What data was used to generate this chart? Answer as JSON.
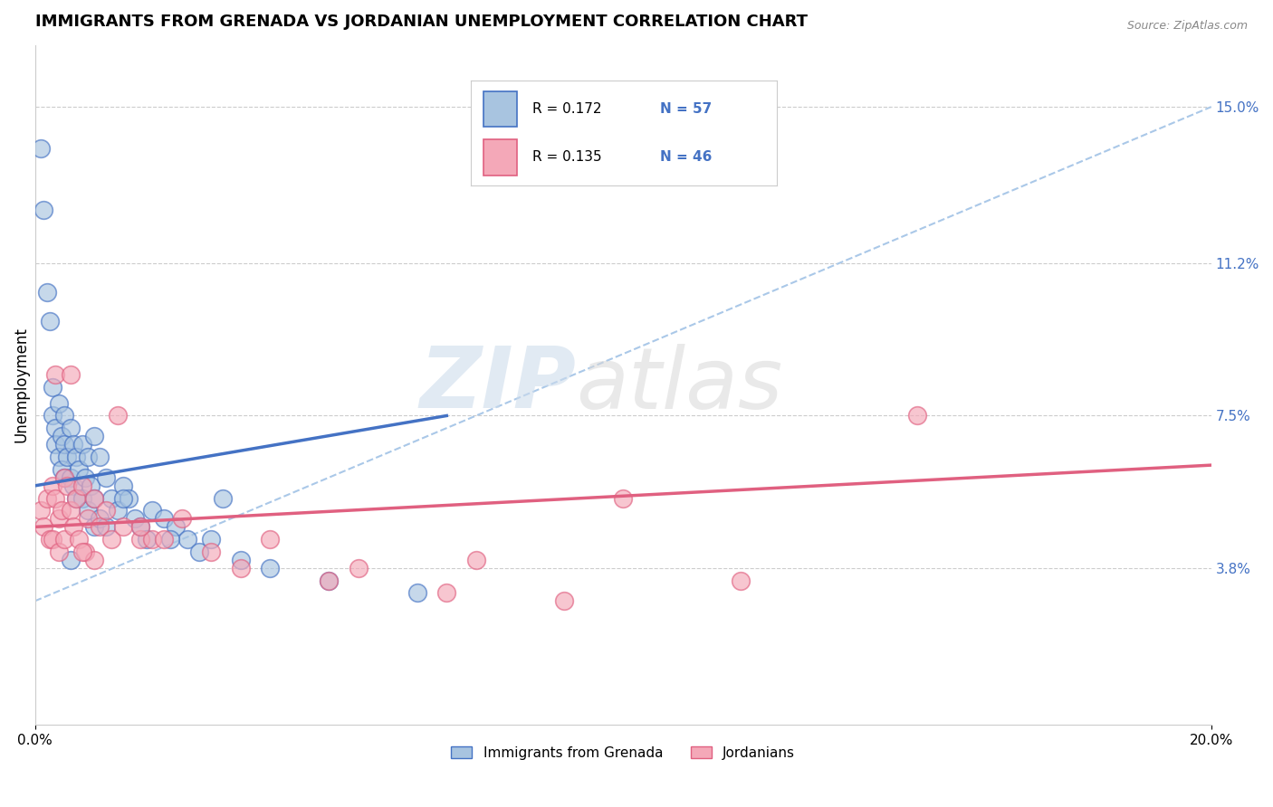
{
  "title": "IMMIGRANTS FROM GRENADA VS JORDANIAN UNEMPLOYMENT CORRELATION CHART",
  "source_text": "Source: ZipAtlas.com",
  "ylabel": "Unemployment",
  "y_ticks_right": [
    3.8,
    7.5,
    11.2,
    15.0
  ],
  "y_ticks_right_labels": [
    "3.8%",
    "7.5%",
    "11.2%",
    "15.0%"
  ],
  "xlim": [
    0.0,
    20.0
  ],
  "ylim": [
    0.0,
    16.5
  ],
  "blue_color": "#a8c4e0",
  "pink_color": "#f4a8b8",
  "trend_blue": "#4472c4",
  "trend_pink": "#e06080",
  "background_color": "#ffffff",
  "blue_scatter_x": [
    0.1,
    0.15,
    0.2,
    0.25,
    0.3,
    0.3,
    0.35,
    0.35,
    0.4,
    0.4,
    0.45,
    0.45,
    0.5,
    0.5,
    0.5,
    0.55,
    0.6,
    0.6,
    0.65,
    0.65,
    0.7,
    0.7,
    0.75,
    0.8,
    0.8,
    0.85,
    0.9,
    0.9,
    0.95,
    1.0,
    1.0,
    1.0,
    1.1,
    1.1,
    1.2,
    1.2,
    1.3,
    1.4,
    1.5,
    1.6,
    1.7,
    1.8,
    1.9,
    2.0,
    2.2,
    2.4,
    2.6,
    2.8,
    3.0,
    3.5,
    4.0,
    5.0,
    6.5,
    3.2,
    2.3,
    1.5,
    0.6
  ],
  "blue_scatter_y": [
    14.0,
    12.5,
    10.5,
    9.8,
    8.2,
    7.5,
    7.2,
    6.8,
    7.8,
    6.5,
    7.0,
    6.2,
    7.5,
    6.8,
    6.0,
    6.5,
    7.2,
    6.0,
    6.8,
    5.8,
    6.5,
    5.5,
    6.2,
    6.8,
    5.5,
    6.0,
    6.5,
    5.2,
    5.8,
    7.0,
    5.5,
    4.8,
    6.5,
    5.0,
    6.0,
    4.8,
    5.5,
    5.2,
    5.8,
    5.5,
    5.0,
    4.8,
    4.5,
    5.2,
    5.0,
    4.8,
    4.5,
    4.2,
    4.5,
    4.0,
    3.8,
    3.5,
    3.2,
    5.5,
    4.5,
    5.5,
    4.0
  ],
  "pink_scatter_x": [
    0.1,
    0.15,
    0.2,
    0.25,
    0.3,
    0.3,
    0.35,
    0.4,
    0.4,
    0.45,
    0.5,
    0.5,
    0.55,
    0.6,
    0.65,
    0.7,
    0.75,
    0.8,
    0.85,
    0.9,
    1.0,
    1.0,
    1.1,
    1.2,
    1.3,
    1.5,
    1.8,
    2.0,
    2.5,
    3.0,
    4.0,
    5.5,
    7.5,
    10.0,
    0.35,
    0.6,
    0.8,
    1.4,
    1.8,
    2.2,
    3.5,
    5.0,
    7.0,
    9.0,
    12.0,
    15.0
  ],
  "pink_scatter_y": [
    5.2,
    4.8,
    5.5,
    4.5,
    5.8,
    4.5,
    5.5,
    5.0,
    4.2,
    5.2,
    6.0,
    4.5,
    5.8,
    5.2,
    4.8,
    5.5,
    4.5,
    5.8,
    4.2,
    5.0,
    5.5,
    4.0,
    4.8,
    5.2,
    4.5,
    4.8,
    4.5,
    4.5,
    5.0,
    4.2,
    4.5,
    3.8,
    4.0,
    5.5,
    8.5,
    8.5,
    4.2,
    7.5,
    4.8,
    4.5,
    3.8,
    3.5,
    3.2,
    3.0,
    3.5,
    7.5
  ],
  "title_fontsize": 13,
  "tick_fontsize": 11,
  "blue_trend_x0": 0.0,
  "blue_trend_y0": 5.8,
  "blue_trend_x1": 7.0,
  "blue_trend_y1": 7.5,
  "pink_trend_x0": 0.0,
  "pink_trend_y0": 4.8,
  "pink_trend_x1": 20.0,
  "pink_trend_y1": 6.3
}
